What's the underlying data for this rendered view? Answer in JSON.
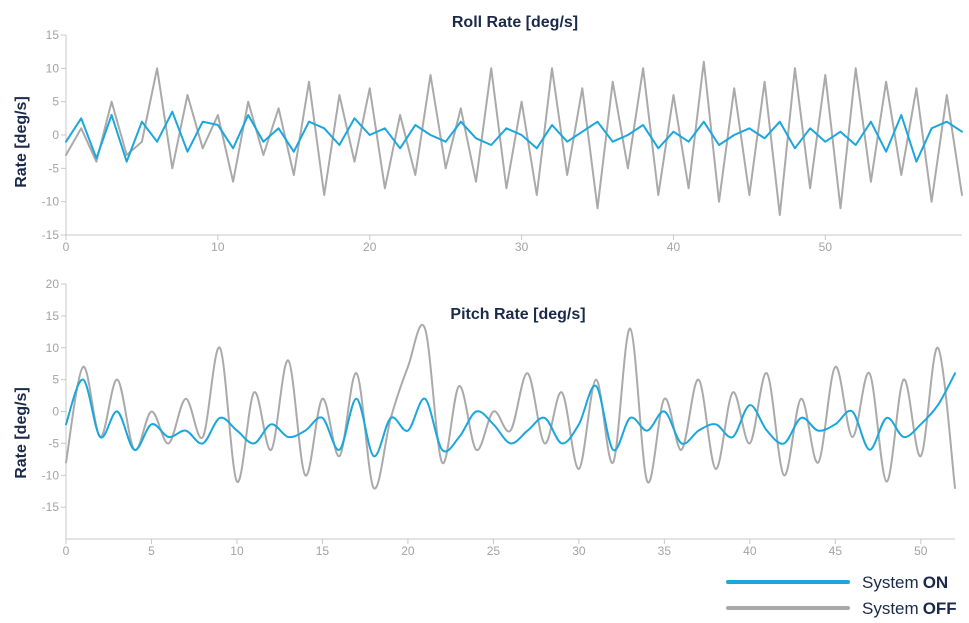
{
  "colors": {
    "on": "#1ba7dd",
    "off": "#aaaaaa",
    "title": "#1b2a4a",
    "tick": "#a3a3a3"
  },
  "legend": [
    {
      "prefix": "System",
      "strong": "ON",
      "color": "#1ba7dd"
    },
    {
      "prefix": "System",
      "strong": "OFF",
      "color": "#aaaaaa"
    }
  ],
  "chart_data": [
    {
      "type": "line",
      "title": "Roll Rate [deg/s]",
      "ylabel": "Rate [deg/s]",
      "xlim": [
        0,
        59
      ],
      "ylim": [
        -15,
        15
      ],
      "xticks": [
        0,
        10,
        20,
        30,
        40,
        50
      ],
      "yticks": [
        -15,
        -10,
        -5,
        0,
        5,
        10,
        15
      ],
      "grid": false,
      "series": [
        {
          "name": "System ON",
          "x": [
            0,
            1,
            2,
            3,
            4,
            5,
            6,
            7,
            8,
            9,
            10,
            11,
            12,
            13,
            14,
            15,
            16,
            17,
            18,
            19,
            20,
            21,
            22,
            23,
            24,
            25,
            26,
            27,
            28,
            29,
            30,
            31,
            32,
            33,
            34,
            35,
            36,
            37,
            38,
            39,
            40,
            41,
            42,
            43,
            44,
            45,
            46,
            47,
            48,
            49,
            50,
            51,
            52,
            53,
            54,
            55,
            56,
            57,
            58,
            59
          ],
          "y": [
            -1,
            2.5,
            -3.5,
            3,
            -4,
            2,
            -1,
            3.5,
            -2.5,
            2,
            1.5,
            -2,
            3,
            -1,
            1,
            -2.5,
            2,
            1,
            -1.5,
            2.5,
            0,
            1,
            -2,
            1.5,
            0,
            -1,
            2,
            -0.5,
            -1.5,
            1,
            0,
            -2,
            1.5,
            -1,
            0.5,
            2,
            -1,
            0,
            1.5,
            -2,
            0.5,
            -1,
            2,
            -1.5,
            0,
            1,
            -0.5,
            2,
            -2,
            1,
            -1,
            0.5,
            -1.5,
            2,
            -2.5,
            3,
            -4,
            1,
            2,
            0.5
          ]
        },
        {
          "name": "System OFF",
          "x": [
            0,
            1,
            2,
            3,
            4,
            5,
            6,
            7,
            8,
            9,
            10,
            11,
            12,
            13,
            14,
            15,
            16,
            17,
            18,
            19,
            20,
            21,
            22,
            23,
            24,
            25,
            26,
            27,
            28,
            29,
            30,
            31,
            32,
            33,
            34,
            35,
            36,
            37,
            38,
            39,
            40,
            41,
            42,
            43,
            44,
            45,
            46,
            47,
            48,
            49,
            50,
            51,
            52,
            53,
            54,
            55,
            56,
            57,
            58,
            59
          ],
          "y": [
            -3,
            1,
            -4,
            5,
            -3,
            -1,
            10,
            -5,
            6,
            -2,
            3,
            -7,
            5,
            -3,
            4,
            -6,
            8,
            -9,
            6,
            -4,
            7,
            -8,
            3,
            -6,
            9,
            -5,
            4,
            -7,
            10,
            -8,
            5,
            -9,
            10,
            -6,
            7,
            -11,
            8,
            -5,
            10,
            -9,
            6,
            -8,
            11,
            -10,
            7,
            -9,
            8,
            -12,
            10,
            -8,
            9,
            -11,
            10,
            -7,
            8,
            -6,
            7,
            -10,
            6,
            -9
          ]
        }
      ]
    },
    {
      "type": "line",
      "title": "Pitch Rate [deg/s]",
      "ylabel": "Rate [deg/s]",
      "xlim": [
        0,
        52
      ],
      "ylim": [
        -20,
        20
      ],
      "xticks": [
        0,
        5,
        10,
        15,
        20,
        25,
        30,
        35,
        40,
        45,
        50
      ],
      "yticks": [
        -15,
        -10,
        -5,
        0,
        5,
        10,
        15,
        20
      ],
      "grid": false,
      "series": [
        {
          "name": "System ON",
          "x": [
            0,
            1,
            2,
            3,
            4,
            5,
            6,
            7,
            8,
            9,
            10,
            11,
            12,
            13,
            14,
            15,
            16,
            17,
            18,
            19,
            20,
            21,
            22,
            23,
            24,
            25,
            26,
            27,
            28,
            29,
            30,
            31,
            32,
            33,
            34,
            35,
            36,
            37,
            38,
            39,
            40,
            41,
            42,
            43,
            44,
            45,
            46,
            47,
            48,
            49,
            50,
            51,
            52
          ],
          "y": [
            -2,
            5,
            -4,
            0,
            -6,
            -2,
            -4,
            -3,
            -5,
            -1,
            -3,
            -5,
            -2,
            -4,
            -3,
            -1,
            -6,
            2,
            -7,
            -1,
            -3,
            2,
            -6,
            -4,
            0,
            -2,
            -5,
            -3,
            -1,
            -5,
            -2,
            4,
            -6,
            -1,
            -3,
            0,
            -5,
            -3,
            -2,
            -4,
            1,
            -3,
            -5,
            -1,
            -3,
            -2,
            0,
            -6,
            -1,
            -4,
            -2,
            1,
            6
          ]
        },
        {
          "name": "System OFF",
          "x": [
            0,
            1,
            2,
            3,
            4,
            5,
            6,
            7,
            8,
            9,
            10,
            11,
            12,
            13,
            14,
            15,
            16,
            17,
            18,
            19,
            20,
            21,
            22,
            23,
            24,
            25,
            26,
            27,
            28,
            29,
            30,
            31,
            32,
            33,
            34,
            35,
            36,
            37,
            38,
            39,
            40,
            41,
            42,
            43,
            44,
            45,
            46,
            47,
            48,
            49,
            50,
            51,
            52
          ],
          "y": [
            -8,
            7,
            -4,
            5,
            -6,
            0,
            -5,
            2,
            -4,
            10,
            -11,
            3,
            -6,
            8,
            -10,
            2,
            -7,
            6,
            -12,
            -1,
            7,
            13,
            -8,
            4,
            -6,
            0,
            -3,
            6,
            -5,
            3,
            -9,
            5,
            -8,
            13,
            -11,
            2,
            -6,
            5,
            -9,
            3,
            -5,
            6,
            -10,
            2,
            -8,
            7,
            -4,
            6,
            -11,
            5,
            -7,
            10,
            -12
          ]
        }
      ]
    }
  ]
}
